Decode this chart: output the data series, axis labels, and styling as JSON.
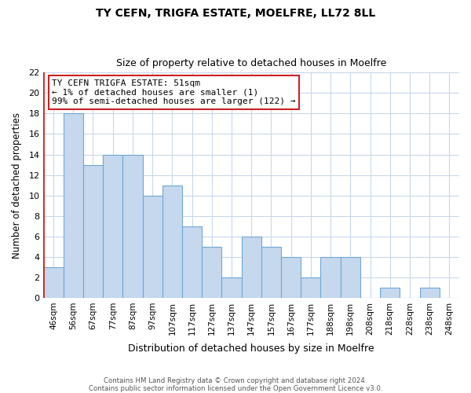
{
  "title": "TY CEFN, TRIGFA ESTATE, MOELFRE, LL72 8LL",
  "subtitle": "Size of property relative to detached houses in Moelfre",
  "xlabel": "Distribution of detached houses by size in Moelfre",
  "ylabel": "Number of detached properties",
  "bin_labels": [
    "46sqm",
    "56sqm",
    "67sqm",
    "77sqm",
    "87sqm",
    "97sqm",
    "107sqm",
    "117sqm",
    "127sqm",
    "137sqm",
    "147sqm",
    "157sqm",
    "167sqm",
    "177sqm",
    "188sqm",
    "198sqm",
    "208sqm",
    "218sqm",
    "228sqm",
    "238sqm",
    "248sqm"
  ],
  "bar_values": [
    3,
    18,
    13,
    14,
    14,
    10,
    11,
    7,
    5,
    2,
    6,
    5,
    4,
    2,
    4,
    4,
    0,
    1,
    0,
    1,
    0
  ],
  "highlight_bar_index": 0,
  "bar_color": "#c5d8ee",
  "bar_edge_color": "#6fa8d4",
  "highlight_line_color": "#cc2222",
  "ylim": [
    0,
    22
  ],
  "yticks": [
    0,
    2,
    4,
    6,
    8,
    10,
    12,
    14,
    16,
    18,
    20,
    22
  ],
  "annotation_box_text": "TY CEFN TRIGFA ESTATE: 51sqm\n← 1% of detached houses are smaller (1)\n99% of semi-detached houses are larger (122) →",
  "annotation_box_color": "#ffffff",
  "annotation_box_edge_color": "#cc2222",
  "footer_line1": "Contains HM Land Registry data © Crown copyright and database right 2024.",
  "footer_line2": "Contains public sector information licensed under the Open Government Licence v3.0.",
  "background_color": "#ffffff",
  "grid_color": "#c8d8ec"
}
